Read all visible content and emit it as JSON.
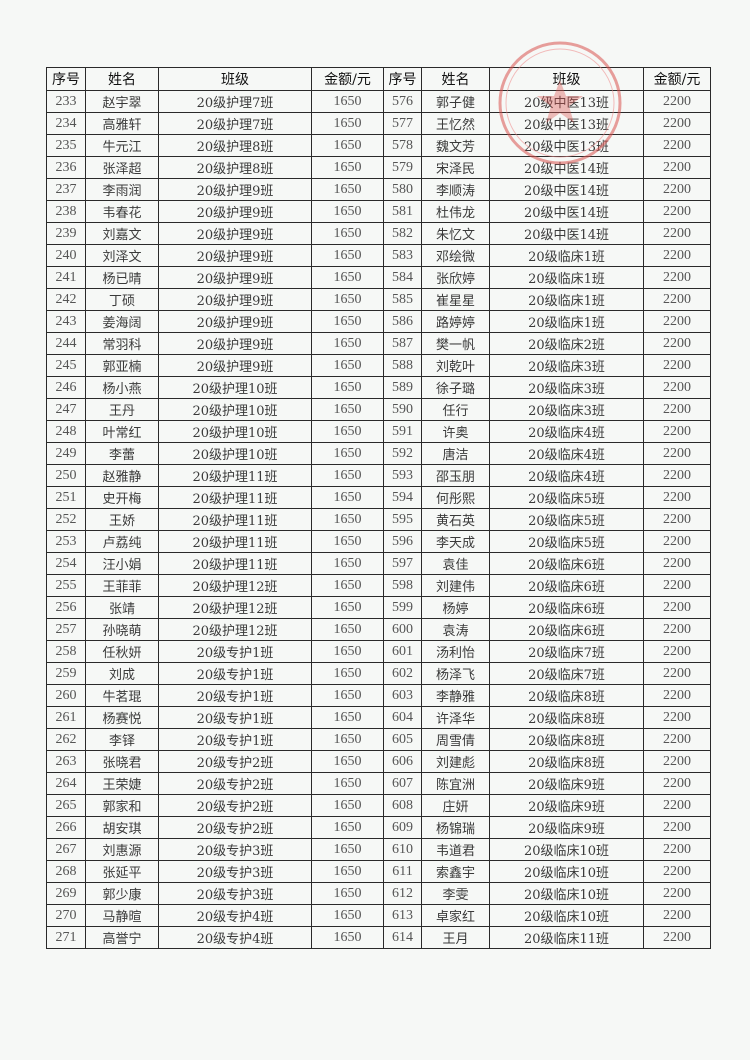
{
  "header": [
    "序号",
    "姓名",
    "班级",
    "金额/元",
    "序号",
    "姓名",
    "班级",
    "金额/元"
  ],
  "rows": [
    [
      "233",
      "赵宇翠",
      "20级护理7班",
      "1650",
      "576",
      "郭子健",
      "20级中医13班",
      "2200"
    ],
    [
      "234",
      "高雅轩",
      "20级护理7班",
      "1650",
      "577",
      "王忆然",
      "20级中医13班",
      "2200"
    ],
    [
      "235",
      "牛元江",
      "20级护理8班",
      "1650",
      "578",
      "魏文芳",
      "20级中医13班",
      "2200"
    ],
    [
      "236",
      "张泽超",
      "20级护理8班",
      "1650",
      "579",
      "宋泽民",
      "20级中医14班",
      "2200"
    ],
    [
      "237",
      "李雨润",
      "20级护理9班",
      "1650",
      "580",
      "李顺涛",
      "20级中医14班",
      "2200"
    ],
    [
      "238",
      "韦春花",
      "20级护理9班",
      "1650",
      "581",
      "杜伟龙",
      "20级中医14班",
      "2200"
    ],
    [
      "239",
      "刘嘉文",
      "20级护理9班",
      "1650",
      "582",
      "朱忆文",
      "20级中医14班",
      "2200"
    ],
    [
      "240",
      "刘泽文",
      "20级护理9班",
      "1650",
      "583",
      "邓绘微",
      "20级临床1班",
      "2200"
    ],
    [
      "241",
      "杨已晴",
      "20级护理9班",
      "1650",
      "584",
      "张欣婷",
      "20级临床1班",
      "2200"
    ],
    [
      "242",
      "丁硕",
      "20级护理9班",
      "1650",
      "585",
      "崔星星",
      "20级临床1班",
      "2200"
    ],
    [
      "243",
      "姜海阔",
      "20级护理9班",
      "1650",
      "586",
      "路婷婷",
      "20级临床1班",
      "2200"
    ],
    [
      "244",
      "常羽科",
      "20级护理9班",
      "1650",
      "587",
      "樊一帆",
      "20级临床2班",
      "2200"
    ],
    [
      "245",
      "郭亚楠",
      "20级护理9班",
      "1650",
      "588",
      "刘乾叶",
      "20级临床3班",
      "2200"
    ],
    [
      "246",
      "杨小燕",
      "20级护理10班",
      "1650",
      "589",
      "徐子璐",
      "20级临床3班",
      "2200"
    ],
    [
      "247",
      "王丹",
      "20级护理10班",
      "1650",
      "590",
      "任行",
      "20级临床3班",
      "2200"
    ],
    [
      "248",
      "叶常红",
      "20级护理10班",
      "1650",
      "591",
      "许奥",
      "20级临床4班",
      "2200"
    ],
    [
      "249",
      "李蕾",
      "20级护理10班",
      "1650",
      "592",
      "唐洁",
      "20级临床4班",
      "2200"
    ],
    [
      "250",
      "赵雅静",
      "20级护理11班",
      "1650",
      "593",
      "邵玉朋",
      "20级临床4班",
      "2200"
    ],
    [
      "251",
      "史开梅",
      "20级护理11班",
      "1650",
      "594",
      "何彤熙",
      "20级临床5班",
      "2200"
    ],
    [
      "252",
      "王娇",
      "20级护理11班",
      "1650",
      "595",
      "黄石英",
      "20级临床5班",
      "2200"
    ],
    [
      "253",
      "卢荔纯",
      "20级护理11班",
      "1650",
      "596",
      "李天成",
      "20级临床5班",
      "2200"
    ],
    [
      "254",
      "汪小娟",
      "20级护理11班",
      "1650",
      "597",
      "袁佳",
      "20级临床6班",
      "2200"
    ],
    [
      "255",
      "王菲菲",
      "20级护理12班",
      "1650",
      "598",
      "刘建伟",
      "20级临床6班",
      "2200"
    ],
    [
      "256",
      "张靖",
      "20级护理12班",
      "1650",
      "599",
      "杨婷",
      "20级临床6班",
      "2200"
    ],
    [
      "257",
      "孙晓萌",
      "20级护理12班",
      "1650",
      "600",
      "袁涛",
      "20级临床6班",
      "2200"
    ],
    [
      "258",
      "任秋妍",
      "20级专护1班",
      "1650",
      "601",
      "汤利怡",
      "20级临床7班",
      "2200"
    ],
    [
      "259",
      "刘成",
      "20级专护1班",
      "1650",
      "602",
      "杨泽飞",
      "20级临床7班",
      "2200"
    ],
    [
      "260",
      "牛茗琨",
      "20级专护1班",
      "1650",
      "603",
      "李静雅",
      "20级临床8班",
      "2200"
    ],
    [
      "261",
      "杨赛悦",
      "20级专护1班",
      "1650",
      "604",
      "许泽华",
      "20级临床8班",
      "2200"
    ],
    [
      "262",
      "李铎",
      "20级专护1班",
      "1650",
      "605",
      "周雪倩",
      "20级临床8班",
      "2200"
    ],
    [
      "263",
      "张晓君",
      "20级专护2班",
      "1650",
      "606",
      "刘建彪",
      "20级临床8班",
      "2200"
    ],
    [
      "264",
      "王荣婕",
      "20级专护2班",
      "1650",
      "607",
      "陈宜洲",
      "20级临床9班",
      "2200"
    ],
    [
      "265",
      "郭家和",
      "20级专护2班",
      "1650",
      "608",
      "庄妍",
      "20级临床9班",
      "2200"
    ],
    [
      "266",
      "胡安琪",
      "20级专护2班",
      "1650",
      "609",
      "杨锦瑞",
      "20级临床9班",
      "2200"
    ],
    [
      "267",
      "刘惠源",
      "20级专护3班",
      "1650",
      "610",
      "韦道君",
      "20级临床10班",
      "2200"
    ],
    [
      "268",
      "张延平",
      "20级专护3班",
      "1650",
      "611",
      "索鑫宇",
      "20级临床10班",
      "2200"
    ],
    [
      "269",
      "郭少康",
      "20级专护3班",
      "1650",
      "612",
      "李雯",
      "20级临床10班",
      "2200"
    ],
    [
      "270",
      "马静暄",
      "20级专护4班",
      "1650",
      "613",
      "卓家红",
      "20级临床10班",
      "2200"
    ],
    [
      "271",
      "高誉宁",
      "20级专护4班",
      "1650",
      "614",
      "王月",
      "20级临床11班",
      "2200"
    ]
  ],
  "stamp_color": "#d9534f"
}
